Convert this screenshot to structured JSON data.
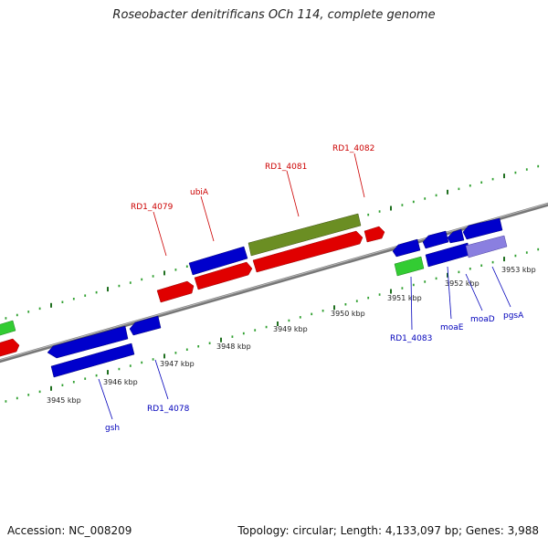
{
  "title": "Roseobacter denitrificans OCh 114, complete genome",
  "accession_text": "Accession: NC_008209",
  "summary_text": "Topology: circular; Length: 4,133,097 bp; Genes: 3,988",
  "colors": {
    "red": "#e00000",
    "blue": "#0000cc",
    "green": "#33cc33",
    "olive": "#6b8e23",
    "lavender": "#8a7fe0",
    "backbone": "#808080",
    "tick_dark": "#207020",
    "label_red": "#cc0000",
    "label_blue": "#0000bb"
  },
  "ruler_labels": [
    "3945 kbp",
    "3946 kbp",
    "3947 kbp",
    "3948 kbp",
    "3949 kbp",
    "3950 kbp",
    "3951 kbp",
    "3952 kbp",
    "3953 kbp"
  ],
  "gene_labels_top": [
    "RD1_4079",
    "ubiA",
    "RD1_4081",
    "RD1_4082"
  ],
  "gene_labels_bottom": [
    "gsh",
    "RD1_4078",
    "RD1_4083",
    "moaE",
    "moaD",
    "pgsA"
  ]
}
